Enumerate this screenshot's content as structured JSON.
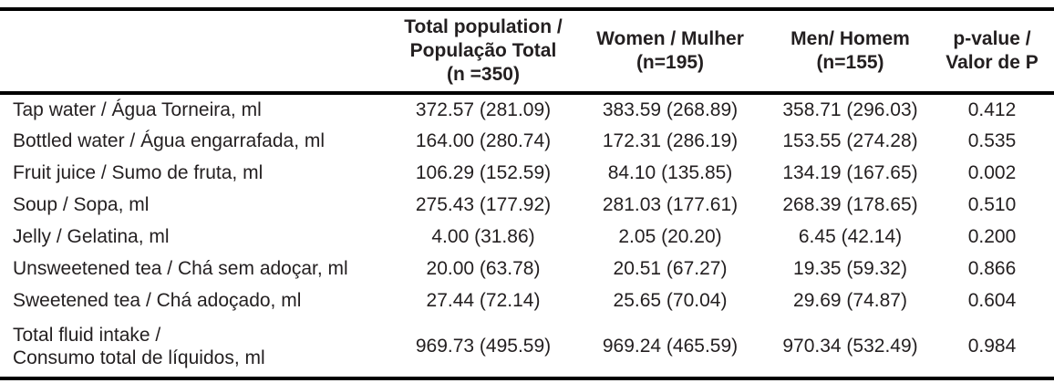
{
  "header": {
    "total": {
      "l1": "Total population /",
      "l2": "População Total",
      "l3": "(n =350)"
    },
    "women": {
      "l1": "Women / Mulher",
      "l2": "(n=195)"
    },
    "men": {
      "l1": "Men/ Homem",
      "l2": "(n=155)"
    },
    "pvalue": {
      "l1": "p-value /",
      "l2": "Valor de P"
    }
  },
  "rows": [
    {
      "label": "Tap water / Água Torneira, ml",
      "total": "372.57 (281.09)",
      "women": "383.59 (268.89)",
      "men": "358.71 (296.03)",
      "p": "0.412"
    },
    {
      "label": "Bottled water / Água engarrafada, ml",
      "total": "164.00 (280.74)",
      "women": "172.31 (286.19)",
      "men": "153.55 (274.28)",
      "p": "0.535"
    },
    {
      "label": "Fruit juice / Sumo de fruta, ml",
      "total": "106.29 (152.59)",
      "women": "84.10 (135.85)",
      "men": "134.19 (167.65)",
      "p": "0.002"
    },
    {
      "label": "Soup / Sopa, ml",
      "total": "275.43 (177.92)",
      "women": "281.03 (177.61)",
      "men": "268.39 (178.65)",
      "p": "0.510"
    },
    {
      "label": "Jelly / Gelatina, ml",
      "total": "4.00 (31.86)",
      "women": "2.05 (20.20)",
      "men": "6.45 (42.14)",
      "p": "0.200"
    },
    {
      "label": "Unsweetened tea / Chá sem adoçar, ml",
      "total": "20.00 (63.78)",
      "women": "20.51 (67.27)",
      "men": "19.35 (59.32)",
      "p": "0.866"
    },
    {
      "label": "Sweetened tea / Chá adoçado, ml",
      "total": "27.44 (72.14)",
      "women": "25.65 (70.04)",
      "men": "29.69 (74.87)",
      "p": "0.604"
    },
    {
      "label1": "Total fluid intake /",
      "label2": "Consumo total de líquidos, ml",
      "total": "969.73 (495.59)",
      "women": "969.24 (465.59)",
      "men": "970.34 (532.49)",
      "p": "0.984"
    }
  ],
  "colors": {
    "text": "#231f20",
    "rule": "#000000",
    "background": "#ffffff"
  }
}
